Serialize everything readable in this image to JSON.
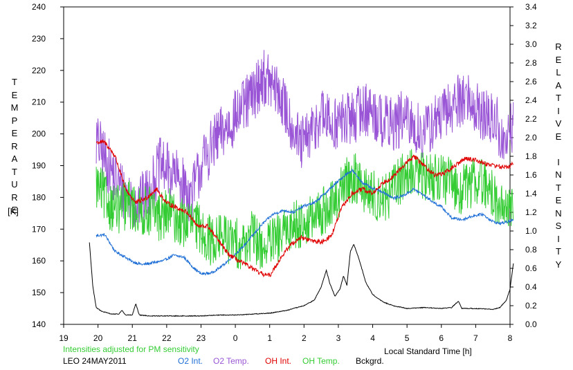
{
  "chart_data": {
    "type": "line",
    "left_axis": {
      "label": "TEMPERATURE",
      "unit": "[K]",
      "ylim": [
        140,
        240
      ],
      "ticks": [
        140,
        150,
        160,
        170,
        180,
        190,
        200,
        210,
        220,
        230,
        240
      ]
    },
    "right_axis": {
      "label": "RELATIVE INTENSITY",
      "ylim": [
        0.0,
        3.4
      ],
      "ticks": [
        "0.0",
        "0.2",
        "0.4",
        "0.6",
        "0.8",
        "1.0",
        "1.2",
        "1.4",
        "1.6",
        "1.8",
        "2.0",
        "2.2",
        "2.4",
        "2.6",
        "2.8",
        "3.0",
        "3.2",
        "3.4"
      ]
    },
    "x_axis": {
      "label": "Local Standard Time [h]",
      "range": [
        19,
        32
      ],
      "tick_labels": [
        "19",
        "20",
        "21",
        "22",
        "23",
        "0",
        "1",
        "2",
        "3",
        "4",
        "5",
        "6",
        "7",
        "8"
      ]
    },
    "note": "Intensities adjusted for PM sensitivity",
    "station_date": "LEO 24MAY2011",
    "legend_placement": "bottom",
    "series": [
      {
        "name": "O2 Int.",
        "color": "#1f6fd6",
        "axis": "right",
        "noise": 0.015,
        "points": [
          [
            19.95,
            0.95
          ],
          [
            20.2,
            0.96
          ],
          [
            20.5,
            0.78
          ],
          [
            20.8,
            0.72
          ],
          [
            21.0,
            0.67
          ],
          [
            21.3,
            0.64
          ],
          [
            21.6,
            0.66
          ],
          [
            21.9,
            0.68
          ],
          [
            22.2,
            0.74
          ],
          [
            22.5,
            0.72
          ],
          [
            22.8,
            0.6
          ],
          [
            23.0,
            0.54
          ],
          [
            23.3,
            0.55
          ],
          [
            23.6,
            0.62
          ],
          [
            23.9,
            0.72
          ],
          [
            24.2,
            0.82
          ],
          [
            24.5,
            0.95
          ],
          [
            24.8,
            1.08
          ],
          [
            25.1,
            1.18
          ],
          [
            25.4,
            1.22
          ],
          [
            25.7,
            1.2
          ],
          [
            26.0,
            1.27
          ],
          [
            26.3,
            1.3
          ],
          [
            26.6,
            1.4
          ],
          [
            26.9,
            1.5
          ],
          [
            27.2,
            1.6
          ],
          [
            27.4,
            1.65
          ],
          [
            27.7,
            1.52
          ],
          [
            28.0,
            1.45
          ],
          [
            28.3,
            1.42
          ],
          [
            28.6,
            1.35
          ],
          [
            28.9,
            1.38
          ],
          [
            29.2,
            1.45
          ],
          [
            29.5,
            1.38
          ],
          [
            29.8,
            1.3
          ],
          [
            30.0,
            1.26
          ],
          [
            30.3,
            1.14
          ],
          [
            30.6,
            1.12
          ],
          [
            30.9,
            1.16
          ],
          [
            31.2,
            1.18
          ],
          [
            31.5,
            1.1
          ],
          [
            31.7,
            1.08
          ],
          [
            31.95,
            1.1
          ],
          [
            32.1,
            1.12
          ]
        ]
      },
      {
        "name": "O2 Temp.",
        "color": "#9955d6",
        "axis": "left",
        "noise": 9,
        "points": [
          [
            19.95,
            198
          ],
          [
            20.3,
            190
          ],
          [
            20.6,
            184
          ],
          [
            20.9,
            180
          ],
          [
            21.2,
            178
          ],
          [
            21.5,
            182
          ],
          [
            21.8,
            190
          ],
          [
            22.1,
            188
          ],
          [
            22.4,
            185
          ],
          [
            22.7,
            180
          ],
          [
            23.0,
            190
          ],
          [
            23.3,
            196
          ],
          [
            23.6,
            200
          ],
          [
            23.9,
            204
          ],
          [
            24.2,
            208
          ],
          [
            24.5,
            212
          ],
          [
            24.8,
            218
          ],
          [
            25.0,
            216
          ],
          [
            25.3,
            212
          ],
          [
            25.6,
            204
          ],
          [
            25.9,
            196
          ],
          [
            26.2,
            200
          ],
          [
            26.5,
            206
          ],
          [
            26.8,
            203
          ],
          [
            27.1,
            204
          ],
          [
            27.4,
            205
          ],
          [
            27.7,
            208
          ],
          [
            28.0,
            207
          ],
          [
            28.3,
            204
          ],
          [
            28.6,
            203
          ],
          [
            28.9,
            205
          ],
          [
            29.2,
            202
          ],
          [
            29.5,
            200
          ],
          [
            29.8,
            204
          ],
          [
            30.1,
            206
          ],
          [
            30.4,
            210
          ],
          [
            30.7,
            212
          ],
          [
            31.0,
            208
          ],
          [
            31.3,
            205
          ],
          [
            31.6,
            204
          ],
          [
            31.8,
            196
          ],
          [
            32.0,
            200
          ],
          [
            32.1,
            203
          ]
        ]
      },
      {
        "name": "OH Int.",
        "color": "#e00000",
        "axis": "right",
        "noise": 0.025,
        "points": [
          [
            19.95,
            1.95
          ],
          [
            20.2,
            1.95
          ],
          [
            20.5,
            1.8
          ],
          [
            20.8,
            1.45
          ],
          [
            21.1,
            1.3
          ],
          [
            21.4,
            1.35
          ],
          [
            21.7,
            1.45
          ],
          [
            22.0,
            1.3
          ],
          [
            22.3,
            1.25
          ],
          [
            22.6,
            1.2
          ],
          [
            22.9,
            1.05
          ],
          [
            23.2,
            1.05
          ],
          [
            23.5,
            0.9
          ],
          [
            23.8,
            0.75
          ],
          [
            24.1,
            0.68
          ],
          [
            24.4,
            0.62
          ],
          [
            24.7,
            0.55
          ],
          [
            25.0,
            0.52
          ],
          [
            25.3,
            0.7
          ],
          [
            25.6,
            0.85
          ],
          [
            25.9,
            0.93
          ],
          [
            26.2,
            0.9
          ],
          [
            26.5,
            0.88
          ],
          [
            26.8,
            0.95
          ],
          [
            27.1,
            1.25
          ],
          [
            27.4,
            1.4
          ],
          [
            27.7,
            1.45
          ],
          [
            28.0,
            1.4
          ],
          [
            28.3,
            1.52
          ],
          [
            28.6,
            1.58
          ],
          [
            28.9,
            1.7
          ],
          [
            29.2,
            1.8
          ],
          [
            29.5,
            1.7
          ],
          [
            29.8,
            1.6
          ],
          [
            30.1,
            1.62
          ],
          [
            30.4,
            1.7
          ],
          [
            30.7,
            1.78
          ],
          [
            31.0,
            1.76
          ],
          [
            31.3,
            1.72
          ],
          [
            31.6,
            1.7
          ],
          [
            31.8,
            1.68
          ],
          [
            32.0,
            1.7
          ],
          [
            32.1,
            1.72
          ]
        ]
      },
      {
        "name": "OH Temp.",
        "color": "#33cc33",
        "axis": "left",
        "noise": 8,
        "points": [
          [
            19.95,
            184
          ],
          [
            20.3,
            178
          ],
          [
            20.6,
            176
          ],
          [
            20.9,
            178
          ],
          [
            21.2,
            175
          ],
          [
            21.5,
            176
          ],
          [
            21.8,
            174
          ],
          [
            22.1,
            175
          ],
          [
            22.4,
            172
          ],
          [
            22.7,
            172
          ],
          [
            23.0,
            170
          ],
          [
            23.3,
            166
          ],
          [
            23.6,
            168
          ],
          [
            23.9,
            166
          ],
          [
            24.2,
            165
          ],
          [
            24.5,
            168
          ],
          [
            24.8,
            164
          ],
          [
            25.1,
            166
          ],
          [
            25.4,
            168
          ],
          [
            25.7,
            172
          ],
          [
            26.0,
            172
          ],
          [
            26.3,
            173
          ],
          [
            26.6,
            176
          ],
          [
            26.9,
            178
          ],
          [
            27.2,
            185
          ],
          [
            27.5,
            186
          ],
          [
            27.8,
            182
          ],
          [
            28.1,
            180
          ],
          [
            28.4,
            180
          ],
          [
            28.7,
            184
          ],
          [
            29.0,
            188
          ],
          [
            29.3,
            187
          ],
          [
            29.6,
            186
          ],
          [
            29.9,
            187
          ],
          [
            30.2,
            185
          ],
          [
            30.5,
            182
          ],
          [
            30.8,
            184
          ],
          [
            31.1,
            186
          ],
          [
            31.4,
            182
          ],
          [
            31.7,
            178
          ],
          [
            31.9,
            176
          ],
          [
            32.1,
            178
          ]
        ]
      },
      {
        "name": "Bckgrd.",
        "color": "#000000",
        "axis": "right",
        "noise": 0.004,
        "points": [
          [
            19.75,
            0.88
          ],
          [
            19.85,
            0.4
          ],
          [
            19.95,
            0.18
          ],
          [
            20.1,
            0.14
          ],
          [
            20.4,
            0.11
          ],
          [
            20.6,
            0.11
          ],
          [
            20.7,
            0.15
          ],
          [
            20.8,
            0.1
          ],
          [
            21.0,
            0.1
          ],
          [
            21.1,
            0.22
          ],
          [
            21.2,
            0.1
          ],
          [
            21.5,
            0.09
          ],
          [
            22.0,
            0.09
          ],
          [
            22.5,
            0.09
          ],
          [
            23.0,
            0.09
          ],
          [
            23.5,
            0.1
          ],
          [
            24.0,
            0.1
          ],
          [
            24.5,
            0.11
          ],
          [
            25.0,
            0.12
          ],
          [
            25.5,
            0.15
          ],
          [
            26.0,
            0.2
          ],
          [
            26.3,
            0.26
          ],
          [
            26.5,
            0.4
          ],
          [
            26.65,
            0.58
          ],
          [
            26.75,
            0.44
          ],
          [
            26.9,
            0.3
          ],
          [
            27.05,
            0.38
          ],
          [
            27.15,
            0.52
          ],
          [
            27.25,
            0.42
          ],
          [
            27.35,
            0.78
          ],
          [
            27.45,
            0.86
          ],
          [
            27.6,
            0.7
          ],
          [
            27.8,
            0.45
          ],
          [
            28.0,
            0.32
          ],
          [
            28.3,
            0.24
          ],
          [
            28.6,
            0.2
          ],
          [
            29.0,
            0.17
          ],
          [
            29.5,
            0.18
          ],
          [
            30.0,
            0.17
          ],
          [
            30.3,
            0.18
          ],
          [
            30.5,
            0.25
          ],
          [
            30.6,
            0.17
          ],
          [
            31.0,
            0.17
          ],
          [
            31.5,
            0.16
          ],
          [
            31.7,
            0.18
          ],
          [
            31.9,
            0.26
          ],
          [
            32.0,
            0.38
          ],
          [
            32.05,
            0.52
          ],
          [
            32.1,
            0.66
          ]
        ]
      }
    ]
  }
}
